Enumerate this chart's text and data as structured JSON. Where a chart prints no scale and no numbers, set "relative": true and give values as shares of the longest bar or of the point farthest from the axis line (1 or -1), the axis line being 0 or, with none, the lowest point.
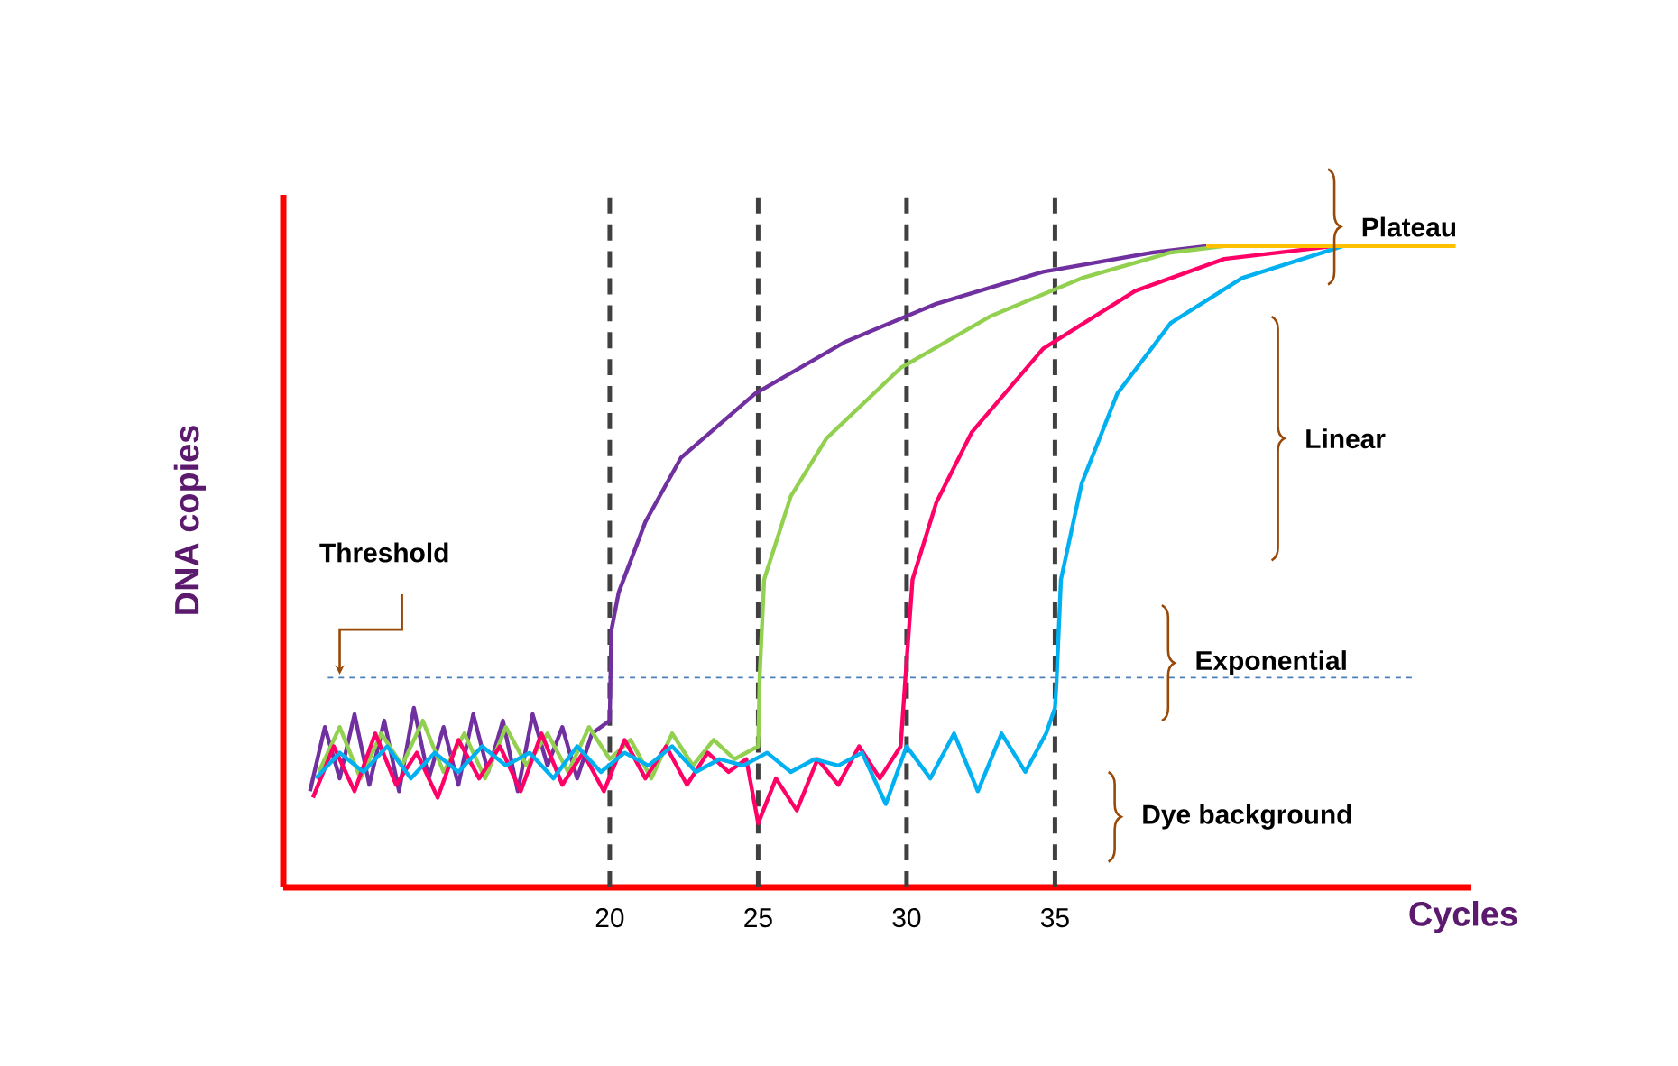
{
  "chart_data": {
    "type": "line",
    "relative": true,
    "xlabel": "Cycles",
    "ylabel": "DNA copies",
    "xlim": [
      9,
      49
    ],
    "xticks": [
      20,
      25,
      30,
      35
    ],
    "grid": false,
    "marker": "none",
    "line_style": "solid",
    "series": [
      {
        "color": "#7030a0",
        "x": [
          9.9,
          10.4,
          10.9,
          11.4,
          11.9,
          12.4,
          12.9,
          13.4,
          13.9,
          14.4,
          14.9,
          15.4,
          15.9,
          16.4,
          16.9,
          17.4,
          17.9,
          18.4,
          18.9,
          19.4,
          20.0,
          20.05,
          20.3,
          21.2,
          22.4,
          24.9,
          27.9,
          31.0,
          34.6,
          38.3,
          40.1
        ],
        "values": [
          0.15,
          0.25,
          0.17,
          0.27,
          0.16,
          0.26,
          0.15,
          0.28,
          0.17,
          0.25,
          0.16,
          0.27,
          0.18,
          0.26,
          0.15,
          0.27,
          0.19,
          0.25,
          0.17,
          0.24,
          0.26,
          0.4,
          0.46,
          0.57,
          0.67,
          0.77,
          0.85,
          0.91,
          0.96,
          0.99,
          1
        ]
      },
      {
        "color": "#92d050",
        "x": [
          10.2,
          10.9,
          11.6,
          12.3,
          13.0,
          13.7,
          14.4,
          15.1,
          15.8,
          16.5,
          17.2,
          17.9,
          18.6,
          19.3,
          20.0,
          20.7,
          21.4,
          22.1,
          22.8,
          23.5,
          24.2,
          25.0,
          25.05,
          25.2,
          26.1,
          27.3,
          29.8,
          32.8,
          35.9,
          38.9,
          40.7
        ],
        "values": [
          0.18,
          0.25,
          0.17,
          0.24,
          0.19,
          0.26,
          0.18,
          0.24,
          0.17,
          0.25,
          0.19,
          0.24,
          0.18,
          0.25,
          0.2,
          0.23,
          0.17,
          0.24,
          0.19,
          0.23,
          0.2,
          0.22,
          0.33,
          0.48,
          0.61,
          0.7,
          0.81,
          0.89,
          0.95,
          0.99,
          1
        ]
      },
      {
        "color": "#ff0066",
        "x": [
          10.0,
          10.7,
          11.4,
          12.1,
          12.8,
          13.5,
          14.2,
          14.9,
          15.6,
          16.3,
          17.0,
          17.7,
          18.4,
          19.1,
          19.8,
          20.5,
          21.2,
          21.9,
          22.6,
          23.3,
          24.0,
          24.6,
          25.0,
          25.6,
          26.3,
          27.0,
          27.7,
          28.4,
          29.1,
          29.8,
          29.95,
          30.2,
          31.0,
          32.2,
          34.6,
          37.7,
          40.7,
          44.4
        ],
        "values": [
          0.14,
          0.22,
          0.15,
          0.24,
          0.16,
          0.21,
          0.14,
          0.23,
          0.17,
          0.22,
          0.15,
          0.24,
          0.16,
          0.21,
          0.15,
          0.23,
          0.17,
          0.22,
          0.16,
          0.21,
          0.18,
          0.2,
          0.1,
          0.17,
          0.12,
          0.2,
          0.16,
          0.22,
          0.17,
          0.22,
          0.32,
          0.48,
          0.6,
          0.71,
          0.84,
          0.93,
          0.98,
          1
        ]
      },
      {
        "color": "#00b0f0",
        "x": [
          10.1,
          10.9,
          11.7,
          12.5,
          13.3,
          14.1,
          14.9,
          15.7,
          16.5,
          17.3,
          18.1,
          18.9,
          19.7,
          20.5,
          21.3,
          22.1,
          22.9,
          23.7,
          24.5,
          25.3,
          26.1,
          26.9,
          27.7,
          28.5,
          29.3,
          30.0,
          30.8,
          31.6,
          32.4,
          33.2,
          34.0,
          34.7,
          35.0,
          35.05,
          35.2,
          35.9,
          37.1,
          38.9,
          41.3,
          44.7
        ],
        "values": [
          0.17,
          0.21,
          0.18,
          0.22,
          0.17,
          0.21,
          0.18,
          0.22,
          0.19,
          0.21,
          0.17,
          0.22,
          0.18,
          0.21,
          0.19,
          0.22,
          0.18,
          0.2,
          0.19,
          0.21,
          0.18,
          0.2,
          0.19,
          0.21,
          0.13,
          0.22,
          0.17,
          0.24,
          0.15,
          0.24,
          0.18,
          0.24,
          0.28,
          0.32,
          0.48,
          0.63,
          0.77,
          0.88,
          0.95,
          1
        ]
      },
      {
        "color": "#ffc000",
        "x": [
          40.1,
          48.5
        ],
        "values": [
          1,
          1
        ]
      }
    ],
    "ref_lines": [
      {
        "axis": "x",
        "value": 20,
        "color": "#404040",
        "line_style": "dashed"
      },
      {
        "axis": "x",
        "value": 25,
        "color": "#404040",
        "line_style": "dashed"
      },
      {
        "axis": "x",
        "value": 30,
        "color": "#404040",
        "line_style": "dashed"
      },
      {
        "axis": "x",
        "value": 35,
        "color": "#404040",
        "line_style": "dashed"
      },
      {
        "axis": "y",
        "value": 0.327,
        "label": "Threshold",
        "color": "#4a7ebb",
        "line_style": "dashed"
      }
    ],
    "annotations": [
      "Plateau",
      "Linear",
      "Exponential",
      "Dye background"
    ]
  }
}
